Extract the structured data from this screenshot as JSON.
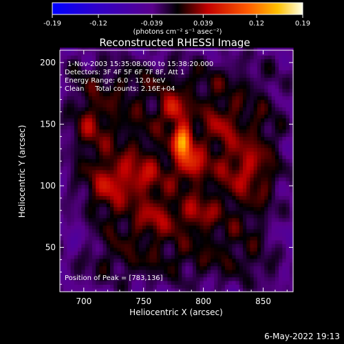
{
  "chart_data": {
    "type": "heatmap",
    "title": "Reconstructed RHESSI Image",
    "xlabel": "Heliocentric X (arcsec)",
    "ylabel": "Heliocentric Y (arcsec)",
    "xlim": [
      680,
      875
    ],
    "ylim": [
      14,
      210
    ],
    "x_ticks": [
      700,
      750,
      800,
      850
    ],
    "y_ticks": [
      50,
      100,
      150,
      200
    ],
    "colorbar": {
      "range": [
        -0.19,
        0.19
      ],
      "ticks": [
        -0.19,
        -0.12,
        -0.039,
        0.039,
        0.12,
        0.19
      ],
      "tick_labels": [
        "-0.19",
        "-0.12",
        "-0.039",
        "0.039",
        "0.12",
        "0.19"
      ],
      "units": "(photons cm⁻² s⁻¹ asec⁻²)"
    },
    "annotations": [
      "1-Nov-2003 15:35:08.000 to 15:38:20.000",
      "Detectors: 3F 4F 5F 6F 7F 8F, Att 1",
      "Energy Range: 6.0 - 12.0 keV",
      "Clean     Total counts: 2.16E+04"
    ],
    "peak_label": "Position of Peak = [783,136]",
    "peak": {
      "x": 783,
      "y": 136,
      "value": 0.19
    },
    "sources": [
      {
        "x": 783,
        "y": 136,
        "sx": 5,
        "sy": 9,
        "amp": 0.14
      },
      {
        "x": 775,
        "y": 162,
        "sx": 6,
        "sy": 8,
        "amp": 0.07
      },
      {
        "x": 790,
        "y": 118,
        "sx": 9,
        "sy": 9,
        "amp": 0.06
      },
      {
        "x": 745,
        "y": 108,
        "sx": 14,
        "sy": 12,
        "amp": 0.045
      },
      {
        "x": 720,
        "y": 100,
        "sx": 9,
        "sy": 14,
        "amp": 0.04
      },
      {
        "x": 795,
        "y": 78,
        "sx": 10,
        "sy": 8,
        "amp": 0.04
      },
      {
        "x": 835,
        "y": 115,
        "sx": 14,
        "sy": 16,
        "amp": 0.04
      },
      {
        "x": 760,
        "y": 75,
        "sx": 12,
        "sy": 10,
        "amp": 0.035
      },
      {
        "x": 815,
        "y": 150,
        "sx": 10,
        "sy": 12,
        "amp": 0.03
      },
      {
        "x": 705,
        "y": 150,
        "sx": 10,
        "sy": 12,
        "amp": 0.03
      },
      {
        "x": 700,
        "y": 60,
        "sx": 12,
        "sy": 20,
        "amp": -0.03
      },
      {
        "x": 860,
        "y": 60,
        "sx": 12,
        "sy": 18,
        "amp": -0.02
      },
      {
        "x": 850,
        "y": 185,
        "sx": 14,
        "sy": 12,
        "amp": -0.015
      }
    ]
  },
  "footer": {
    "timestamp": "6-May-2022 19:13"
  }
}
